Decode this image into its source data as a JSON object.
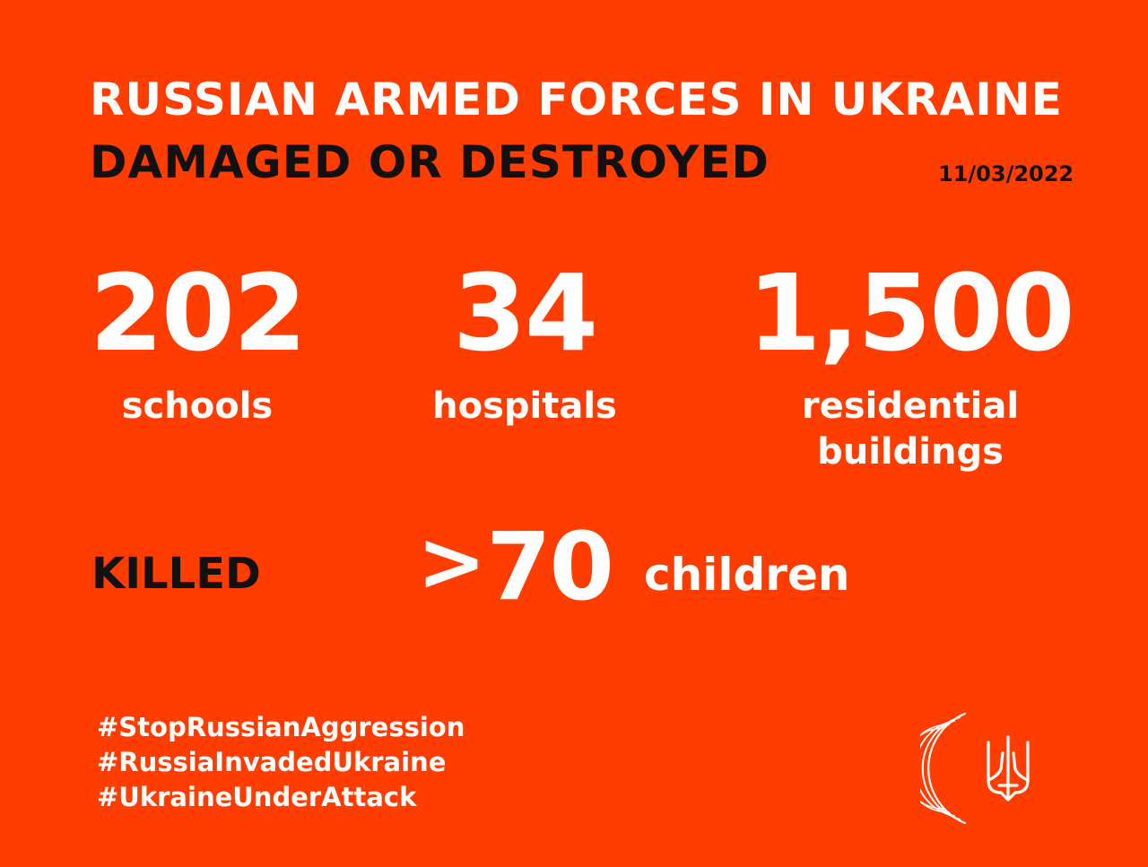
{
  "header": {
    "title_line1": "RUSSIAN ARMED FORCES IN UKRAINE",
    "title_line2": "DAMAGED OR DESTROYED",
    "date": "11/03/2022"
  },
  "stats": [
    {
      "value": "202",
      "label_line1": "schools",
      "label_line2": ""
    },
    {
      "value": "34",
      "label_line1": "hospitals",
      "label_line2": ""
    },
    {
      "value": "1,500",
      "label_line1": "residential",
      "label_line2": "buildings"
    }
  ],
  "killed": {
    "label": "KILLED",
    "prefix": ">",
    "value": "70",
    "unit": "children"
  },
  "hashtags": [
    "#StopRussianAggression",
    "#RussiaInvadedUkraine",
    "#UkraineUnderAttack"
  ],
  "icons": {
    "arc_logo": "arc-logo-icon",
    "coat_of_arms": "trident-icon"
  },
  "colors": {
    "background": "#FF3D00",
    "primary_text": "#FFFFFF",
    "accent_text": "#111111"
  }
}
